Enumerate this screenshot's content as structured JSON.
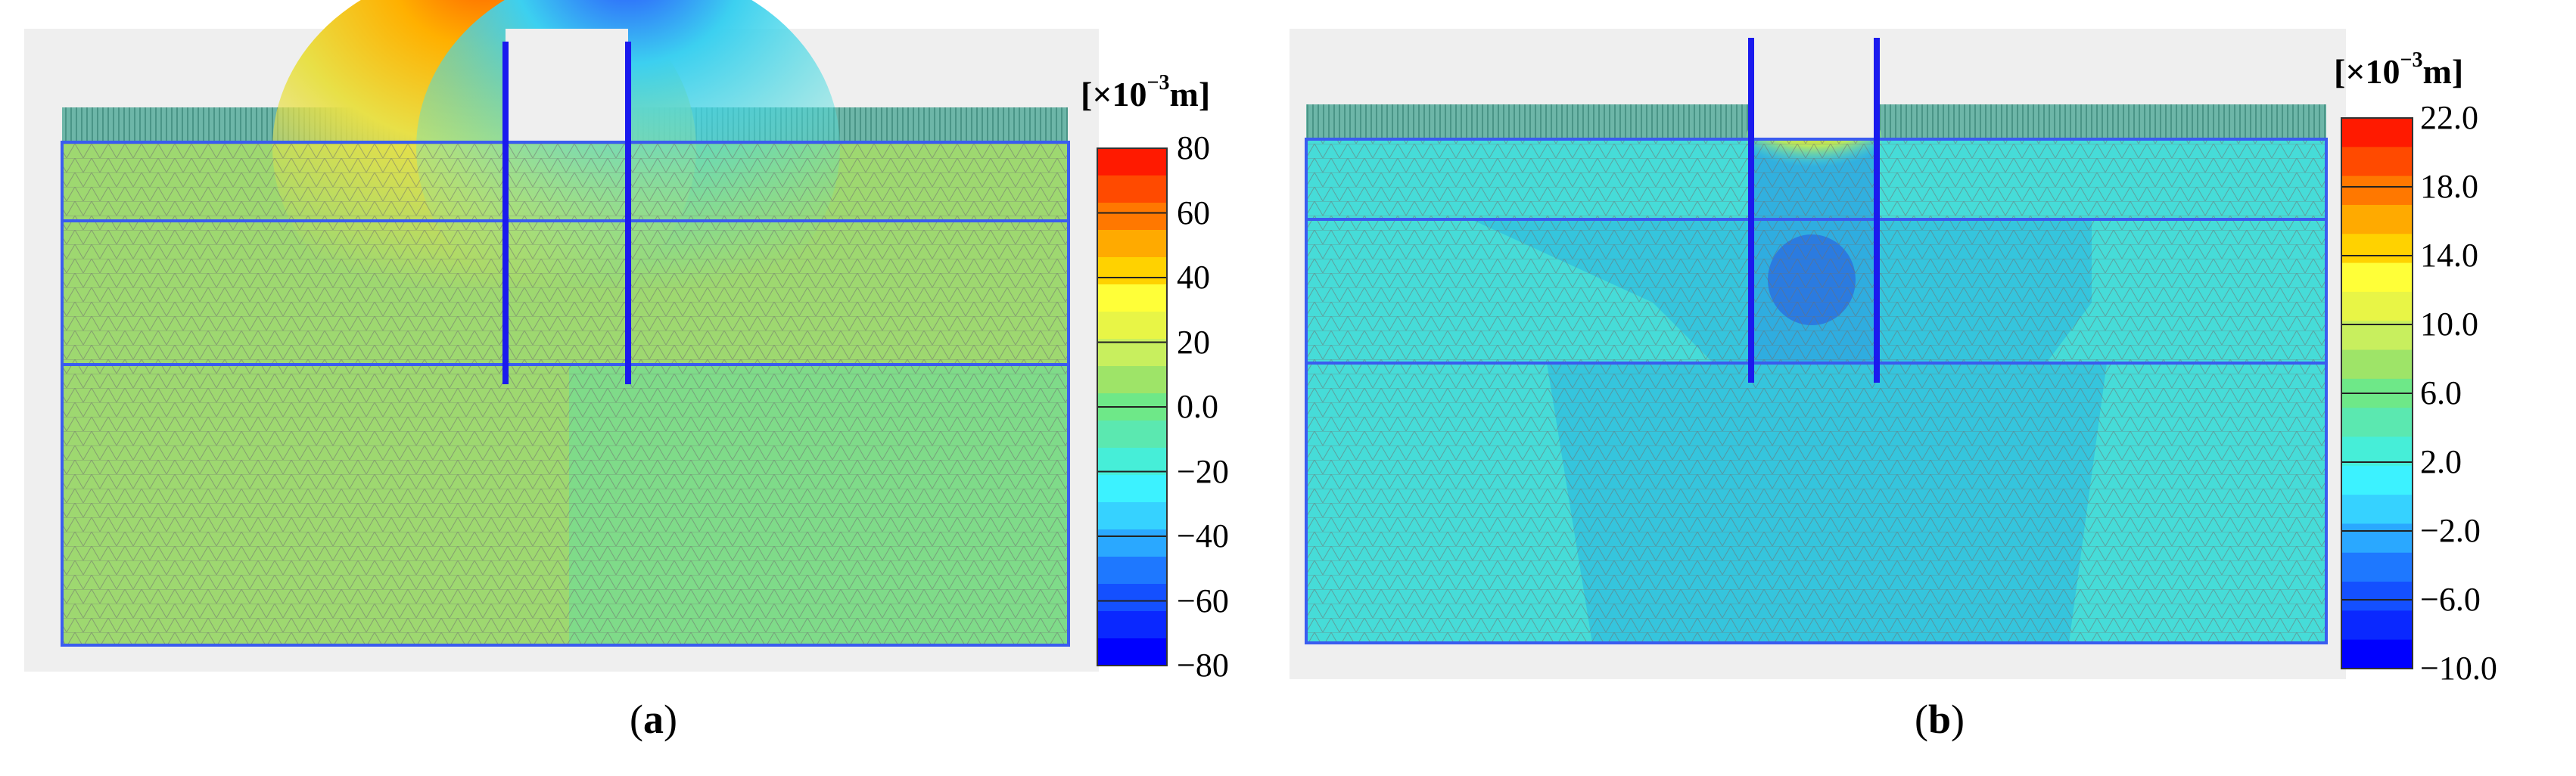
{
  "panels": [
    {
      "id": "a",
      "label": "a",
      "legend": {
        "unit_prefix": "[×10",
        "unit_exp": "−3",
        "unit_suffix": "m]",
        "ticks": [
          "80",
          "60",
          "40",
          "20",
          "0.0",
          "−20",
          "−40",
          "−60",
          "−80"
        ],
        "colors": [
          "#ff1a00",
          "#ff4a00",
          "#ff7800",
          "#ffaa00",
          "#ffd200",
          "#ffff38",
          "#e8f546",
          "#c8ef5e",
          "#9ee468",
          "#6ee888",
          "#5be8b0",
          "#46eed8",
          "#3cf2ff",
          "#36d2ff",
          "#2aa8ff",
          "#1e78ff",
          "#1450ff",
          "#0a28ff",
          "#0000ff"
        ]
      },
      "field": {
        "base": "#9ed870",
        "layers": [
          "#9ed870",
          "#96d46c",
          "#94d36e"
        ],
        "lower_right": "#74dc92"
      }
    },
    {
      "id": "b",
      "label": "b",
      "legend": {
        "unit_prefix": "[×10",
        "unit_exp": "−3",
        "unit_suffix": "m]",
        "ticks": [
          "22.0",
          "18.0",
          "14.0",
          "10.0",
          "6.0",
          "2.0",
          "−2.0",
          "−6.0",
          "−10.0"
        ],
        "colors": [
          "#ff1a00",
          "#ff4a00",
          "#ff7800",
          "#ffaa00",
          "#ffd200",
          "#ffff38",
          "#e8f546",
          "#c8ef5e",
          "#9ee468",
          "#6ee888",
          "#5be8b0",
          "#46eed8",
          "#3cf2ff",
          "#36d2ff",
          "#2aa8ff",
          "#1e78ff",
          "#1450ff",
          "#0a28ff",
          "#0000ff"
        ]
      },
      "field": {
        "base": "#46dcd8",
        "inner": "#2ebae0"
      }
    }
  ]
}
